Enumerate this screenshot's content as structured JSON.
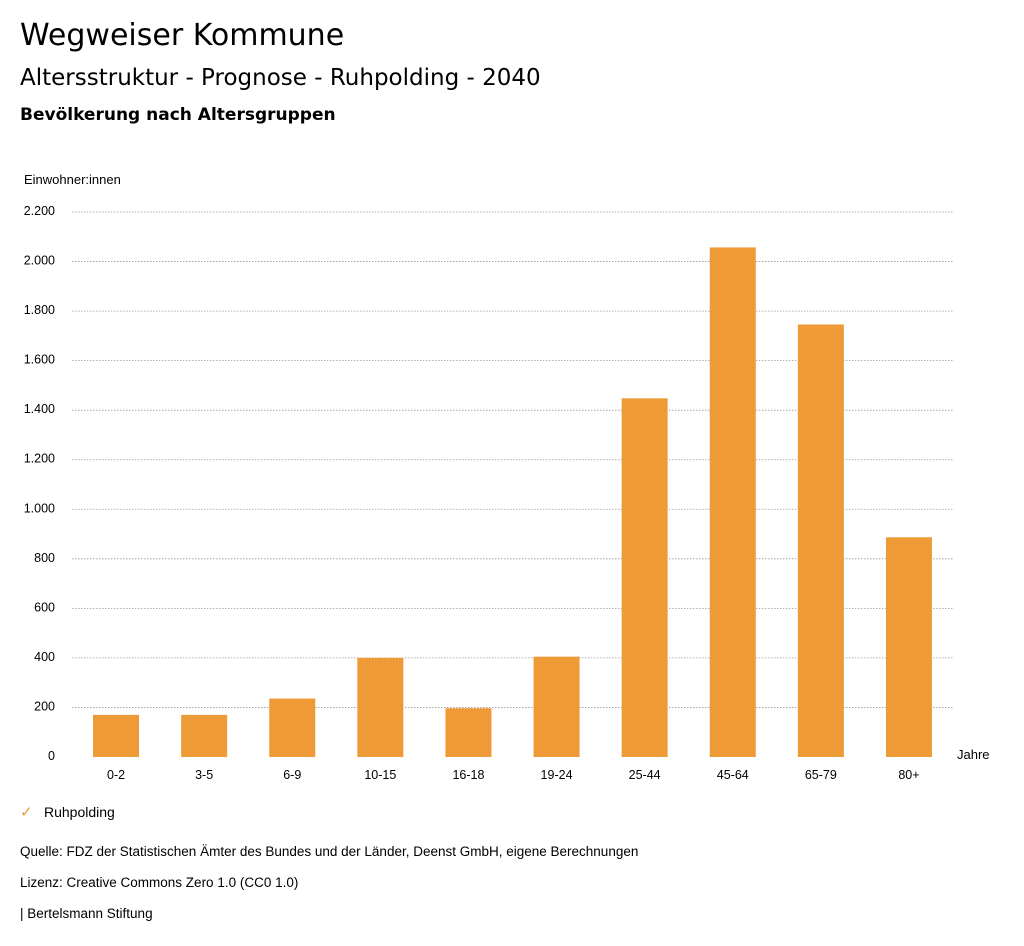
{
  "header": {
    "title": "Wegweiser Kommune",
    "subtitle": "Altersstruktur - Prognose - Ruhpolding - 2040",
    "subsubtitle": "Bevölkerung nach Altersgruppen"
  },
  "chart_data": {
    "type": "bar",
    "ylabel": "Einwohner:innen",
    "xlabel": "Jahre",
    "ylim": [
      0,
      2200
    ],
    "yticks": [
      0,
      200,
      400,
      600,
      800,
      1000,
      1200,
      1400,
      1600,
      1800,
      2000,
      2200
    ],
    "ytick_labels": [
      "0",
      "200",
      "400",
      "600",
      "800",
      "1.000",
      "1.200",
      "1.400",
      "1.600",
      "1.800",
      "2.000",
      "2.200"
    ],
    "categories": [
      "0-2",
      "3-5",
      "6-9",
      "10-15",
      "16-18",
      "19-24",
      "25-44",
      "45-64",
      "65-79",
      "80+"
    ],
    "series": [
      {
        "name": "Ruhpolding",
        "color": "#ee9a37",
        "values": [
          170,
          170,
          236,
          400,
          197,
          405,
          1448,
          2057,
          1746,
          887
        ]
      }
    ],
    "grid": true
  },
  "legend": {
    "label": "Ruhpolding",
    "icon": "check-icon"
  },
  "footer": {
    "source": "Quelle: FDZ der Statistischen Ämter des Bundes und der Länder, Deenst GmbH, eigene Berechnungen",
    "license": "Lizenz: Creative Commons Zero 1.0 (CC0 1.0)",
    "publisher": "| Bertelsmann Stiftung"
  }
}
